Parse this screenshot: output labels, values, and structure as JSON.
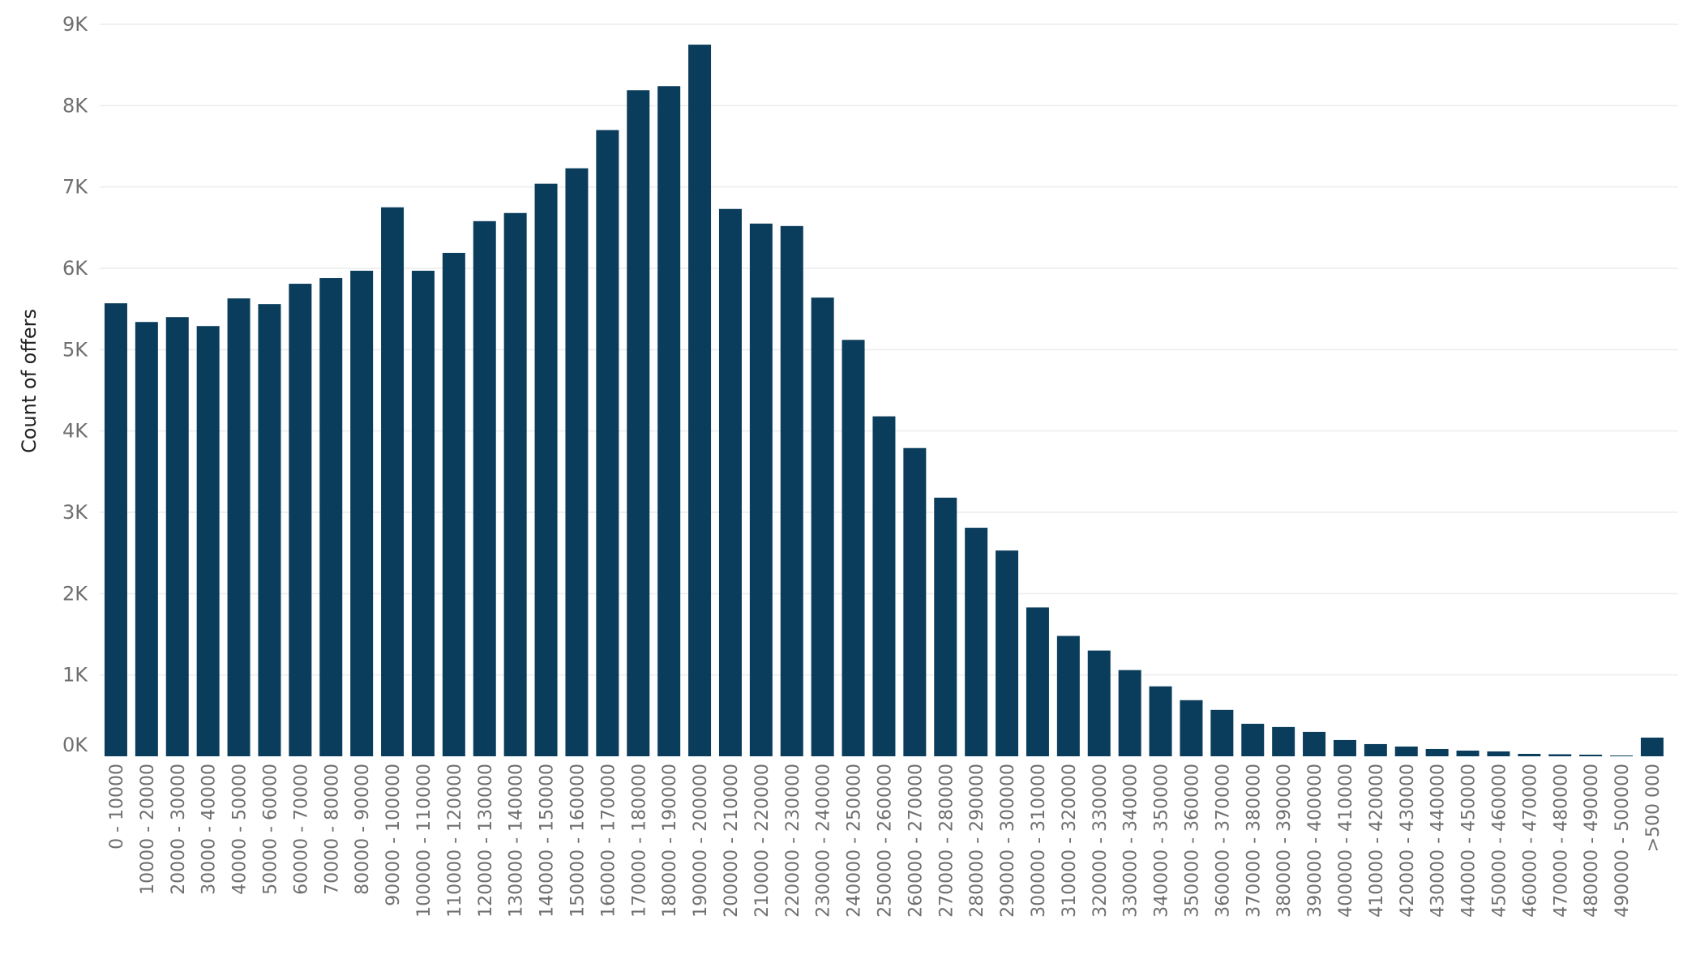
{
  "colors": {
    "bar": "#0a3d5c",
    "grid": "#ececec",
    "tick_text": "#6f6f6f",
    "axis_title_text": "#222222"
  },
  "chart_data": {
    "type": "bar",
    "title": "",
    "xlabel": "",
    "ylabel": "Count of offers",
    "ylim": [
      0,
      9000
    ],
    "y_ticks": [
      {
        "value": 0,
        "label": "0K"
      },
      {
        "value": 1000,
        "label": "1K"
      },
      {
        "value": 2000,
        "label": "2K"
      },
      {
        "value": 3000,
        "label": "3K"
      },
      {
        "value": 4000,
        "label": "4K"
      },
      {
        "value": 5000,
        "label": "5K"
      },
      {
        "value": 6000,
        "label": "6K"
      },
      {
        "value": 7000,
        "label": "7K"
      },
      {
        "value": 8000,
        "label": "8K"
      },
      {
        "value": 9000,
        "label": "9K"
      }
    ],
    "grid": true,
    "legend": "none",
    "categories": [
      "0 - 10000",
      "10000 - 20000",
      "20000 - 30000",
      "30000 - 40000",
      "40000 - 50000",
      "50000 - 60000",
      "60000 - 70000",
      "70000 - 80000",
      "80000 - 90000",
      "90000 - 100000",
      "100000 - 110000",
      "110000 - 120000",
      "120000 - 130000",
      "130000 - 140000",
      "140000 - 150000",
      "150000 - 160000",
      "160000 - 170000",
      "170000 - 180000",
      "180000 - 190000",
      "190000 - 200000",
      "200000 - 210000",
      "210000 - 220000",
      "220000 - 230000",
      "230000 - 240000",
      "240000 - 250000",
      "250000 - 260000",
      "260000 - 270000",
      "270000 - 280000",
      "280000 - 290000",
      "290000 - 300000",
      "300000 - 310000",
      "310000 - 320000",
      "320000 - 330000",
      "330000 - 340000",
      "340000 - 350000",
      "350000 - 360000",
      "360000 - 370000",
      "370000 - 380000",
      "380000 - 390000",
      "390000 - 400000",
      "400000 - 410000",
      "410000 - 420000",
      "420000 - 430000",
      "430000 - 440000",
      "440000 - 450000",
      "450000 - 460000",
      "460000 - 470000",
      "470000 - 480000",
      "480000 - 490000",
      "490000 - 500000",
      ">500 000"
    ],
    "values": [
      5570,
      5340,
      5400,
      5290,
      5630,
      5560,
      5810,
      5880,
      5970,
      6750,
      5970,
      6190,
      6580,
      6680,
      7040,
      7230,
      7700,
      8190,
      8240,
      8750,
      6730,
      6550,
      6520,
      5640,
      5120,
      4180,
      3790,
      3180,
      2810,
      2530,
      1830,
      1480,
      1300,
      1060,
      860,
      690,
      570,
      400,
      360,
      300,
      200,
      150,
      120,
      90,
      70,
      60,
      30,
      25,
      20,
      10,
      230
    ]
  }
}
